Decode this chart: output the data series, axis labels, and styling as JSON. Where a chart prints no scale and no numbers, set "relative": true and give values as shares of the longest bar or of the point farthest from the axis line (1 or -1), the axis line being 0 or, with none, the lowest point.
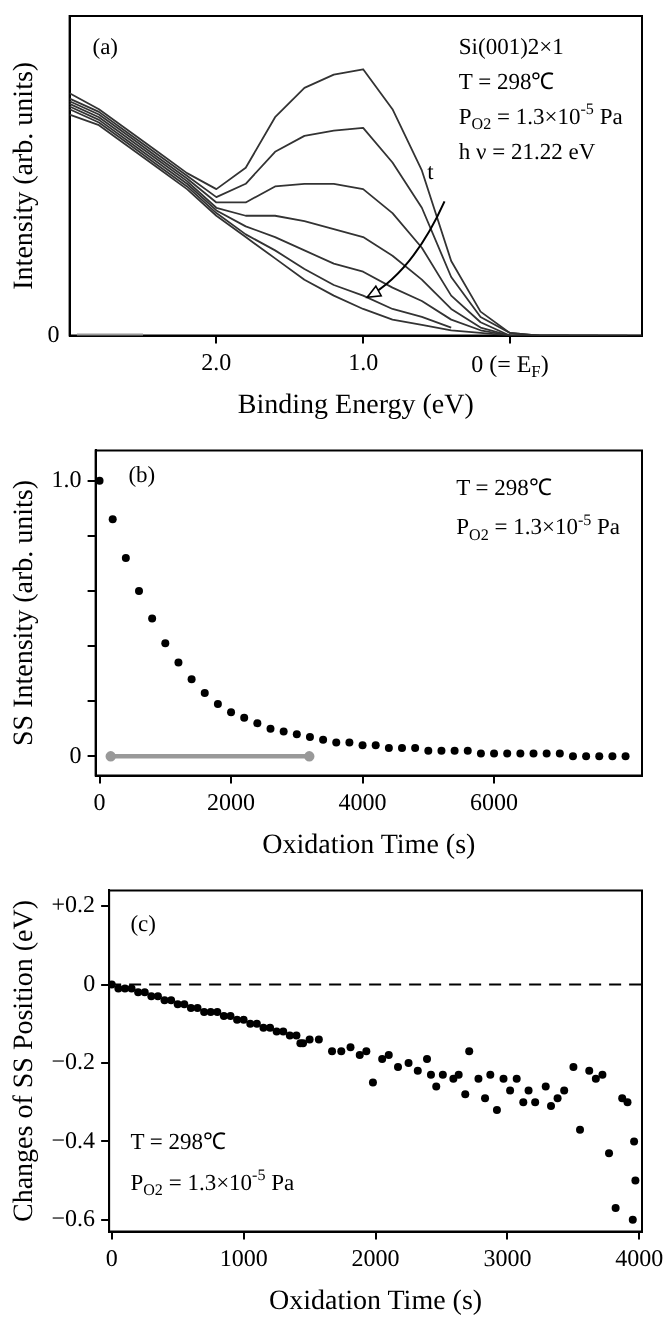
{
  "chart_data": [
    {
      "type": "line",
      "xlabel": "Binding Energy (eV)",
      "ylabel": "Intensity (arb. units)",
      "relative": true,
      "x": [
        3.0,
        2.8,
        2.6,
        2.4,
        2.2,
        2.0,
        1.8,
        1.6,
        1.4,
        1.2,
        1.0,
        0.8,
        0.6,
        0.4,
        0.2,
        0,
        -0.2,
        -0.4,
        -0.6,
        -0.9
      ],
      "xlim": [
        3.0,
        -0.9
      ],
      "xticks": [
        {
          "value": 2,
          "label": "2.0"
        },
        {
          "value": 1,
          "label": "1.0"
        },
        {
          "value": 0,
          "label": "0 (= E$_{F}$)"
        }
      ],
      "grid": false,
      "annotations": [
        "(a)",
        "Si(001)2×1",
        "T = 298℃",
        "P$_{O2}$ = 1.3×10$^{-5}$ Pa",
        "h ν = 21.22 eV",
        "t",
        {
          "text": "0",
          "x": 3.0,
          "y": 0
        }
      ],
      "series": [
        {
          "color": "#333333",
          "values": [
            0.91,
            0.85,
            0.77,
            0.69,
            0.61,
            0.55,
            0.63,
            0.82,
            0.93,
            0.98,
            1.0,
            0.85,
            0.62,
            0.28,
            0.09,
            0.01,
            0,
            null,
            null,
            null
          ]
        },
        {
          "color": "#333333",
          "values": [
            0.89,
            0.84,
            0.76,
            0.68,
            0.6,
            0.52,
            0.57,
            0.69,
            0.75,
            0.77,
            0.78,
            0.65,
            0.48,
            0.22,
            0.07,
            0.01,
            0,
            0,
            null,
            null
          ]
        },
        {
          "color": "#333333",
          "values": [
            0.88,
            0.83,
            0.75,
            0.67,
            0.59,
            0.5,
            0.5,
            0.56,
            0.57,
            0.57,
            0.55,
            0.46,
            0.33,
            0.15,
            0.05,
            0,
            0,
            0,
            0,
            null
          ]
        },
        {
          "color": "#333333",
          "values": [
            0.87,
            0.82,
            0.74,
            0.66,
            0.58,
            0.48,
            0.45,
            0.45,
            0.43,
            0.4,
            0.37,
            0.3,
            0.21,
            0.1,
            0.03,
            0,
            null,
            null,
            null,
            null
          ]
        },
        {
          "color": "#333333",
          "x": [
            3.0,
            2.8,
            2.6,
            2.4,
            2.2,
            2.0,
            1.8,
            1.6,
            1.4,
            1.2,
            1.0,
            0.8,
            0.6,
            0.4,
            0.2,
            0,
            -0.2,
            -0.4,
            -0.6,
            -0.8
          ],
          "values": [
            0.86,
            0.81,
            0.73,
            0.65,
            0.57,
            0.47,
            0.41,
            0.37,
            0.32,
            0.27,
            0.24,
            0.18,
            0.13,
            0.06,
            0.02,
            0,
            0,
            0,
            0,
            0
          ]
        },
        {
          "color": "#333333",
          "values": [
            0.85,
            0.8,
            0.72,
            0.64,
            0.56,
            0.46,
            0.38,
            0.32,
            0.25,
            0.19,
            0.15,
            0.1,
            0.07,
            0.03,
            null,
            null,
            null,
            null,
            null,
            null
          ]
        },
        {
          "color": "#333333",
          "values": [
            0.83,
            0.79,
            0.71,
            0.63,
            0.55,
            0.45,
            0.37,
            0.29,
            0.21,
            0.15,
            0.1,
            0.06,
            0.04,
            0.02,
            0.01,
            0,
            0,
            0,
            0,
            0
          ]
        },
        {
          "color": "#999999",
          "x": [
            2.95,
            2.5
          ],
          "values": [
            0,
            0
          ]
        }
      ]
    },
    {
      "type": "scatter",
      "xlabel": "Oxidation Time (s)",
      "ylabel": "SS Intensity (arb. units)",
      "marker": "circle",
      "grid": false,
      "xlim": [
        -60,
        8250
      ],
      "xticks": [
        0,
        2000,
        4000,
        6000
      ],
      "ylim": [
        -0.07,
        1.11
      ],
      "yticks": [
        {
          "value": 0,
          "label": "0"
        },
        {
          "value": 0.2,
          "label": null
        },
        {
          "value": 0.4,
          "label": null
        },
        {
          "value": 0.6,
          "label": null
        },
        {
          "value": 0.8,
          "label": null
        },
        {
          "value": 1,
          "label": "1.0"
        }
      ],
      "annotations": [
        "(b)",
        "T = 298℃",
        "P$_{O2}$ = 1.3×10$^{-5}$ Pa"
      ],
      "series": [
        {
          "color": "#000000",
          "x": [
            0,
            200,
            400,
            600,
            800,
            1000,
            1200,
            1400,
            1600,
            1800,
            2000,
            2200,
            2400,
            2600,
            2800,
            3000,
            3200,
            3400,
            3600,
            3800,
            4000,
            4200,
            4400,
            4600,
            4800,
            5000,
            5200,
            5400,
            5600,
            5800,
            6000,
            6200,
            6400,
            6600,
            6800,
            7000,
            7200,
            7400,
            7600,
            7800,
            8000
          ],
          "values": [
            1.0,
            0.86,
            0.72,
            0.6,
            0.5,
            0.41,
            0.34,
            0.28,
            0.23,
            0.19,
            0.16,
            0.14,
            0.12,
            0.1,
            0.09,
            0.08,
            0.07,
            0.06,
            0.05,
            0.05,
            0.04,
            0.04,
            0.03,
            0.03,
            0.03,
            0.02,
            0.02,
            0.02,
            0.02,
            0.01,
            0.01,
            0.01,
            0.01,
            0.01,
            0.01,
            0.01,
            0,
            0,
            0,
            0,
            0
          ]
        },
        {
          "type": "line",
          "color": "#999999",
          "x": [
            170,
            3190
          ],
          "values": [
            0,
            0
          ]
        }
      ]
    },
    {
      "type": "scatter",
      "xlabel": "Oxidation Time (s)",
      "ylabel": "Changes of SS Position (eV)",
      "marker": "circle",
      "grid": false,
      "xlim": [
        -20,
        4020
      ],
      "xticks": [
        0,
        1000,
        2000,
        3000,
        4000
      ],
      "ylim": [
        -0.63,
        0.24
      ],
      "yticks": [
        {
          "value": -0.6,
          "label": "−0.6"
        },
        {
          "value": -0.4,
          "label": "−0.4"
        },
        {
          "value": -0.2,
          "label": "−0.2"
        },
        {
          "value": 0,
          "label": "0"
        },
        {
          "value": 0.2,
          "label": "+0.2"
        }
      ],
      "ref_lines": [
        {
          "axis": "y",
          "value": 0,
          "color": "#000000",
          "line_style": "dashed"
        }
      ],
      "annotations": [
        "(c)",
        "T = 298℃",
        "P$_{O2}$ = 1.3×10$^{-5}$ Pa"
      ],
      "series": [
        {
          "color": "#000000",
          "x": [
            0,
            50,
            100,
            150,
            200,
            250,
            300,
            350,
            400,
            450,
            500,
            550,
            600,
            650,
            700,
            750,
            800,
            850,
            900,
            950,
            1000,
            1050,
            1100,
            1150,
            1200,
            1250,
            1300,
            1350,
            1400,
            1450,
            1500,
            1430,
            1570,
            1670,
            1740,
            1810,
            1880,
            1930,
            1980,
            2050,
            2100,
            2170,
            2250,
            2320,
            2390,
            2420,
            2460,
            2510,
            2590,
            2630,
            2680,
            2710,
            2780,
            2830,
            2870,
            2920,
            2970,
            3020,
            3070,
            3120,
            3160,
            3210,
            3290,
            3330,
            3380,
            3430,
            3500,
            3550,
            3620,
            3670,
            3720,
            3770,
            3820,
            3870,
            3910,
            3950,
            3960,
            3970
          ],
          "values": [
            0,
            -0.01,
            -0.01,
            -0.01,
            -0.02,
            -0.02,
            -0.03,
            -0.03,
            -0.04,
            -0.04,
            -0.05,
            -0.05,
            -0.06,
            -0.06,
            -0.07,
            -0.07,
            -0.07,
            -0.08,
            -0.08,
            -0.09,
            -0.09,
            -0.1,
            -0.1,
            -0.11,
            -0.11,
            -0.12,
            -0.12,
            -0.13,
            -0.13,
            -0.15,
            -0.14,
            -0.15,
            -0.14,
            -0.17,
            -0.17,
            -0.16,
            -0.18,
            -0.17,
            -0.25,
            -0.19,
            -0.18,
            -0.21,
            -0.2,
            -0.22,
            -0.19,
            -0.23,
            -0.26,
            -0.23,
            -0.24,
            -0.23,
            -0.28,
            -0.17,
            -0.24,
            -0.29,
            -0.23,
            -0.32,
            -0.24,
            -0.27,
            -0.24,
            -0.3,
            -0.27,
            -0.3,
            -0.26,
            -0.31,
            -0.29,
            -0.27,
            -0.21,
            -0.37,
            -0.22,
            -0.24,
            -0.23,
            -0.43,
            -0.57,
            -0.29,
            -0.3,
            -0.6,
            -0.4,
            -0.5
          ]
        }
      ]
    }
  ]
}
